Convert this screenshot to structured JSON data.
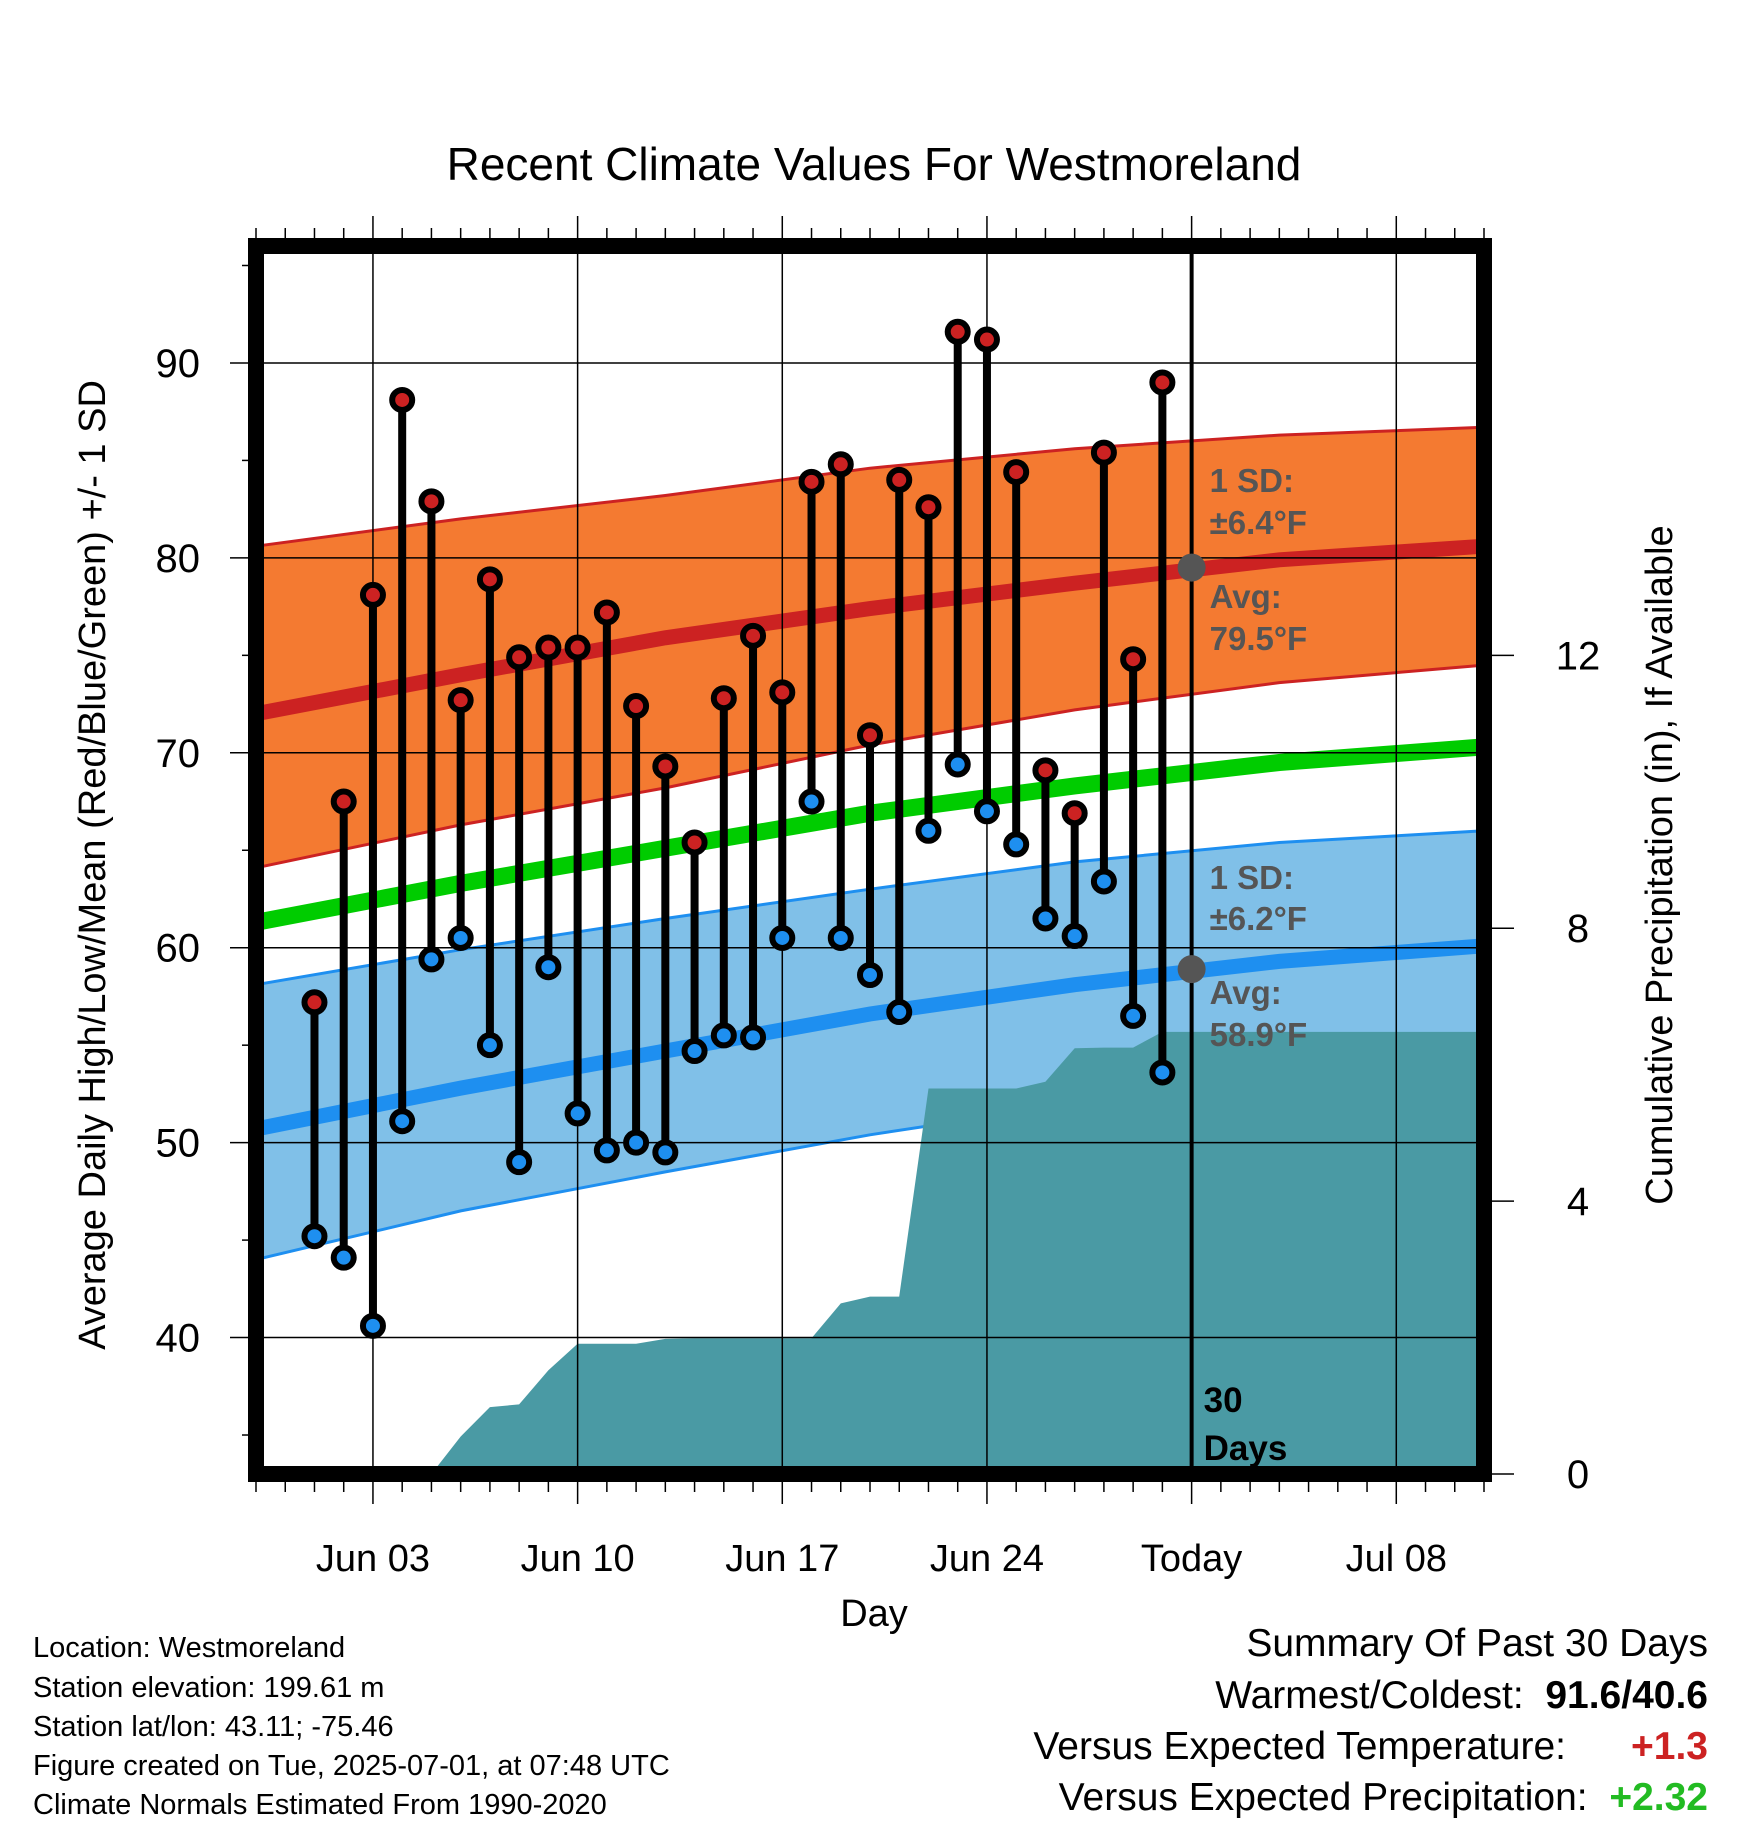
{
  "chart_data": {
    "type": "line",
    "title": "Recent Climate Values For Westmoreland",
    "xlabel": "Day",
    "ylabel_left": "Average Daily High/Low/Mean (Red/Blue/Green) +/- 1 SD",
    "ylabel_right": "Cumulative Precipitation (in), If Available",
    "x_ticks": [
      "Jun 03",
      "Jun 10",
      "Jun 17",
      "Jun 24",
      "Today",
      "Jul 08"
    ],
    "x_range": [
      "2025-05-30",
      "2025-07-11"
    ],
    "today": "2025-07-01",
    "ylim_left": [
      33,
      96
    ],
    "y_ticks_left": [
      40,
      50,
      60,
      70,
      80,
      90
    ],
    "ylim_right": [
      0,
      18
    ],
    "y_ticks_right": [
      0,
      4,
      8,
      12
    ],
    "grid": true,
    "dates": [
      "2025-06-01",
      "2025-06-02",
      "2025-06-03",
      "2025-06-04",
      "2025-06-05",
      "2025-06-06",
      "2025-06-07",
      "2025-06-08",
      "2025-06-09",
      "2025-06-10",
      "2025-06-11",
      "2025-06-12",
      "2025-06-13",
      "2025-06-14",
      "2025-06-15",
      "2025-06-16",
      "2025-06-17",
      "2025-06-18",
      "2025-06-19",
      "2025-06-20",
      "2025-06-21",
      "2025-06-22",
      "2025-06-23",
      "2025-06-24",
      "2025-06-25",
      "2025-06-26",
      "2025-06-27",
      "2025-06-28",
      "2025-06-29",
      "2025-06-30"
    ],
    "highs": [
      57.2,
      67.5,
      78.1,
      88.1,
      82.9,
      72.7,
      78.9,
      74.9,
      75.4,
      75.4,
      77.2,
      72.4,
      69.3,
      65.4,
      72.8,
      76.0,
      73.1,
      83.9,
      84.8,
      70.9,
      84.0,
      82.6,
      91.6,
      91.2,
      84.4,
      69.1,
      66.9,
      85.4,
      74.8,
      89.0
    ],
    "lows": [
      45.2,
      44.1,
      40.6,
      51.1,
      59.4,
      60.5,
      55.0,
      49.0,
      59.0,
      51.5,
      49.6,
      50.0,
      49.5,
      54.7,
      55.5,
      55.4,
      60.5,
      67.5,
      60.5,
      58.6,
      56.7,
      66.0,
      69.4,
      67.0,
      65.3,
      61.5,
      60.6,
      63.4,
      56.5,
      53.6
    ],
    "normal_high": {
      "x": [
        "2025-05-30",
        "2025-06-06",
        "2025-06-13",
        "2025-06-20",
        "2025-06-27",
        "2025-07-04",
        "2025-07-11"
      ],
      "mean": [
        72.0,
        74.0,
        75.9,
        77.4,
        78.7,
        79.9,
        80.6
      ],
      "upper": [
        80.6,
        82.0,
        83.2,
        84.6,
        85.6,
        86.3,
        86.7
      ],
      "lower": [
        64.1,
        66.3,
        68.2,
        70.4,
        72.2,
        73.6,
        74.5
      ]
    },
    "normal_mean": {
      "x": [
        "2025-05-30",
        "2025-06-06",
        "2025-06-13",
        "2025-06-20",
        "2025-06-27",
        "2025-07-04",
        "2025-07-11"
      ],
      "values": [
        61.3,
        63.3,
        65.1,
        66.9,
        68.3,
        69.5,
        70.3
      ]
    },
    "normal_low": {
      "x": [
        "2025-05-30",
        "2025-06-06",
        "2025-06-13",
        "2025-06-20",
        "2025-06-27",
        "2025-07-04",
        "2025-07-11"
      ],
      "mean": [
        50.7,
        52.8,
        54.7,
        56.6,
        58.1,
        59.3,
        60.1
      ],
      "upper": [
        58.1,
        59.9,
        61.5,
        63.0,
        64.4,
        65.4,
        66.0
      ],
      "lower": [
        44.0,
        46.5,
        48.5,
        50.4,
        52.0,
        53.4,
        54.3
      ]
    },
    "precip": {
      "x": [
        "2025-06-05",
        "2025-06-06",
        "2025-06-07",
        "2025-06-08",
        "2025-06-09",
        "2025-06-10",
        "2025-06-11",
        "2025-06-12",
        "2025-06-13",
        "2025-06-14",
        "2025-06-15",
        "2025-06-16",
        "2025-06-17",
        "2025-06-18",
        "2025-06-19",
        "2025-06-20",
        "2025-06-21",
        "2025-06-22",
        "2025-06-23",
        "2025-06-24",
        "2025-06-25",
        "2025-06-26",
        "2025-06-27",
        "2025-06-28",
        "2025-06-29",
        "2025-06-30",
        "2025-07-11"
      ],
      "values": [
        0,
        0.55,
        0.98,
        1.02,
        1.52,
        1.91,
        1.91,
        1.91,
        1.98,
        1.99,
        1.99,
        1.99,
        1.99,
        1.99,
        2.5,
        2.6,
        2.6,
        5.65,
        5.65,
        5.65,
        5.65,
        5.75,
        6.24,
        6.25,
        6.25,
        6.48,
        6.48
      ]
    },
    "annotations": {
      "high_sd": [
        "1 SD:",
        "±6.4°F"
      ],
      "high_avg": [
        "Avg:",
        "79.5°F"
      ],
      "high_avg_value": 79.5,
      "low_sd": [
        "1 SD:",
        "±6.2°F"
      ],
      "low_avg": [
        "Avg:",
        "58.9°F"
      ],
      "low_avg_value": 58.9,
      "days": [
        "30",
        "Days"
      ]
    },
    "colors": {
      "high": "#cc2222",
      "high_band": "#f47a31",
      "low": "#1e8ff0",
      "low_band": "#80c0e8",
      "mean": "#00cc00",
      "precip": "#4a9aa4",
      "annotation": "#555555"
    }
  },
  "info": {
    "location": "Location: Westmoreland",
    "elevation": "Station elevation: 199.61 m",
    "latlon": "Station lat/lon: 43.11; -75.46",
    "created": "Figure created on Tue, 2025-07-01, at 07:48 UTC",
    "normals": "Climate Normals Estimated From 1990-2020"
  },
  "summary": {
    "title": "Summary Of Past 30 Days",
    "warm_label": "Warmest/Coldest:",
    "warm_value": "91.6/40.6",
    "temp_label": "Versus Expected Temperature:",
    "temp_value": "+1.3",
    "precip_label": "Versus Expected Precipitation:",
    "precip_value": "+2.32"
  }
}
